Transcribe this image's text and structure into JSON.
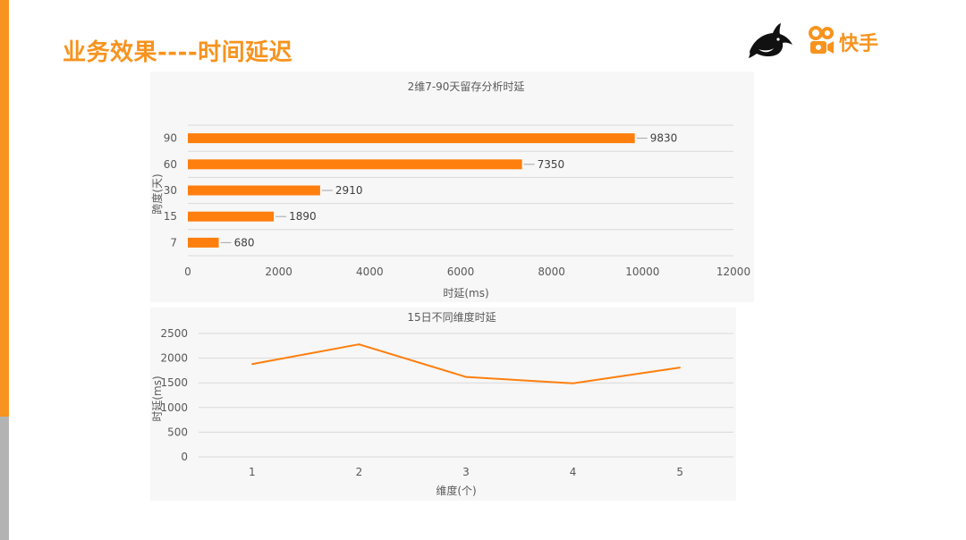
{
  "slide": {
    "title": "业务效果----时间延迟",
    "logo_text": "快手"
  },
  "colors": {
    "accent": "#f7931e",
    "bar": "#ff7f0e",
    "gray": "#b3b3b3"
  },
  "icons": {
    "left_logo": "orca-icon",
    "right_logo": "kuaishou-icon"
  },
  "chart_data": [
    {
      "type": "bar",
      "orientation": "horizontal",
      "title": "2维7-90天留存分析时延",
      "categories": [
        "7",
        "15",
        "30",
        "60",
        "90"
      ],
      "values": [
        680,
        1890,
        2910,
        7350,
        9830
      ],
      "xlabel": "时延(ms)",
      "ylabel": "跨度(天)",
      "xlim": [
        0,
        12000
      ],
      "xticks": [
        "0",
        "2000",
        "4000",
        "6000",
        "8000",
        "10000",
        "12000"
      ],
      "data_labels": [
        "680",
        "1890",
        "2910",
        "7350",
        "9830"
      ],
      "grid": true,
      "legend": "none"
    },
    {
      "type": "line",
      "title": "15日不同维度时延",
      "x": [
        "1",
        "2",
        "3",
        "4",
        "5"
      ],
      "values": [
        1880,
        2280,
        1620,
        1490,
        1810
      ],
      "xlabel": "维度(个)",
      "ylabel": "时延(ms)",
      "ylim": [
        0,
        2500
      ],
      "yticks": [
        "0",
        "500",
        "1000",
        "1500",
        "2000",
        "2500"
      ],
      "grid": true,
      "legend": "none"
    }
  ]
}
